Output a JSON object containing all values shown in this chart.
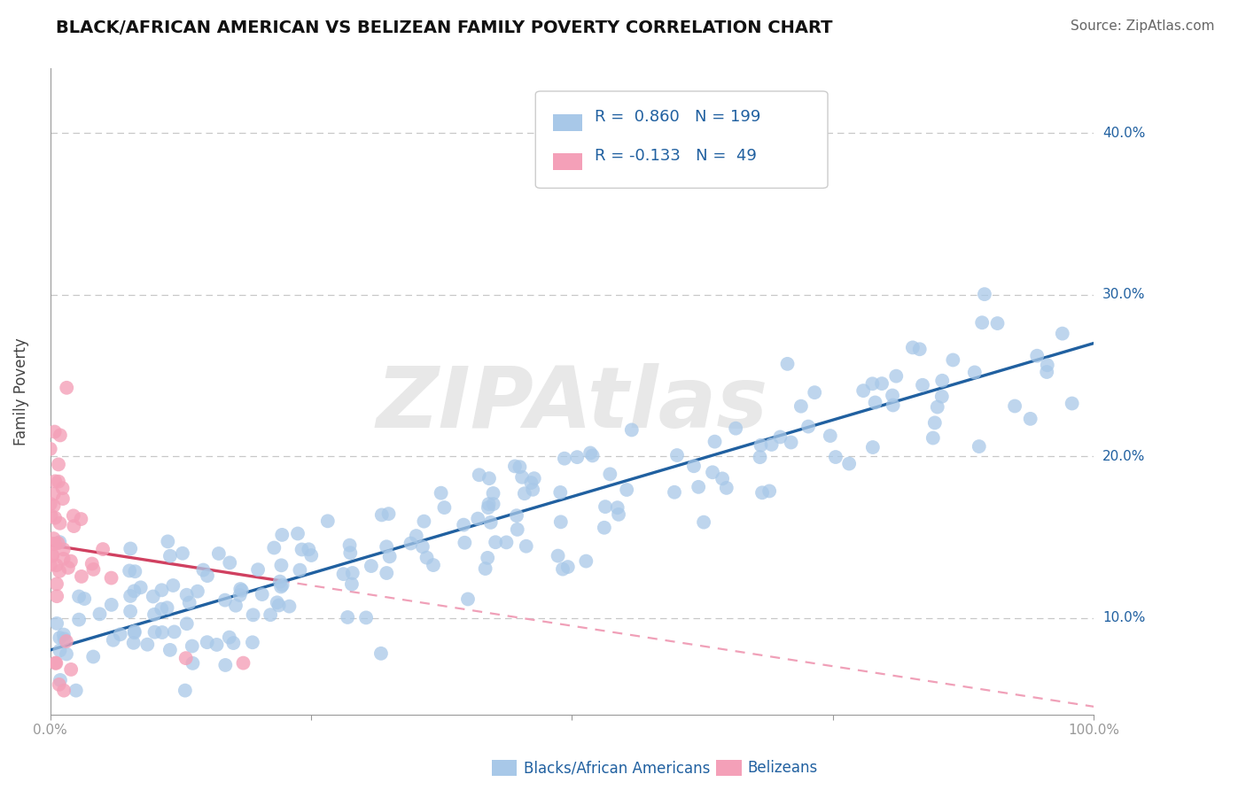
{
  "title": "BLACK/AFRICAN AMERICAN VS BELIZEAN FAMILY POVERTY CORRELATION CHART",
  "source_text": "Source: ZipAtlas.com",
  "ylabel": "Family Poverty",
  "xlim": [
    0.0,
    1.0
  ],
  "ylim": [
    0.04,
    0.44
  ],
  "yticks": [
    0.1,
    0.2,
    0.3,
    0.4
  ],
  "ytick_labels": [
    "10.0%",
    "20.0%",
    "30.0%",
    "40.0%"
  ],
  "xticks": [
    0.0,
    0.25,
    0.5,
    0.75,
    1.0
  ],
  "xtick_labels": [
    "0.0%",
    "",
    "",
    "",
    "100.0%"
  ],
  "blue_R": 0.86,
  "blue_N": 199,
  "pink_R": -0.133,
  "pink_N": 49,
  "blue_color": "#a8c8e8",
  "blue_line_color": "#2060a0",
  "pink_color": "#f4a0b8",
  "pink_line_color": "#d04060",
  "pink_dash_color": "#f0a0b8",
  "background_color": "#ffffff",
  "grid_color": "#c8c8c8",
  "watermark_text": "ZIPAtlas",
  "legend_label_blue": "Blacks/African Americans",
  "legend_label_pink": "Belizeans",
  "title_fontsize": 14,
  "axis_label_fontsize": 12,
  "tick_fontsize": 11,
  "legend_fontsize": 13,
  "source_fontsize": 11,
  "blue_intercept": 0.08,
  "blue_slope": 0.19,
  "pink_intercept": 0.145,
  "pink_slope": -0.1
}
